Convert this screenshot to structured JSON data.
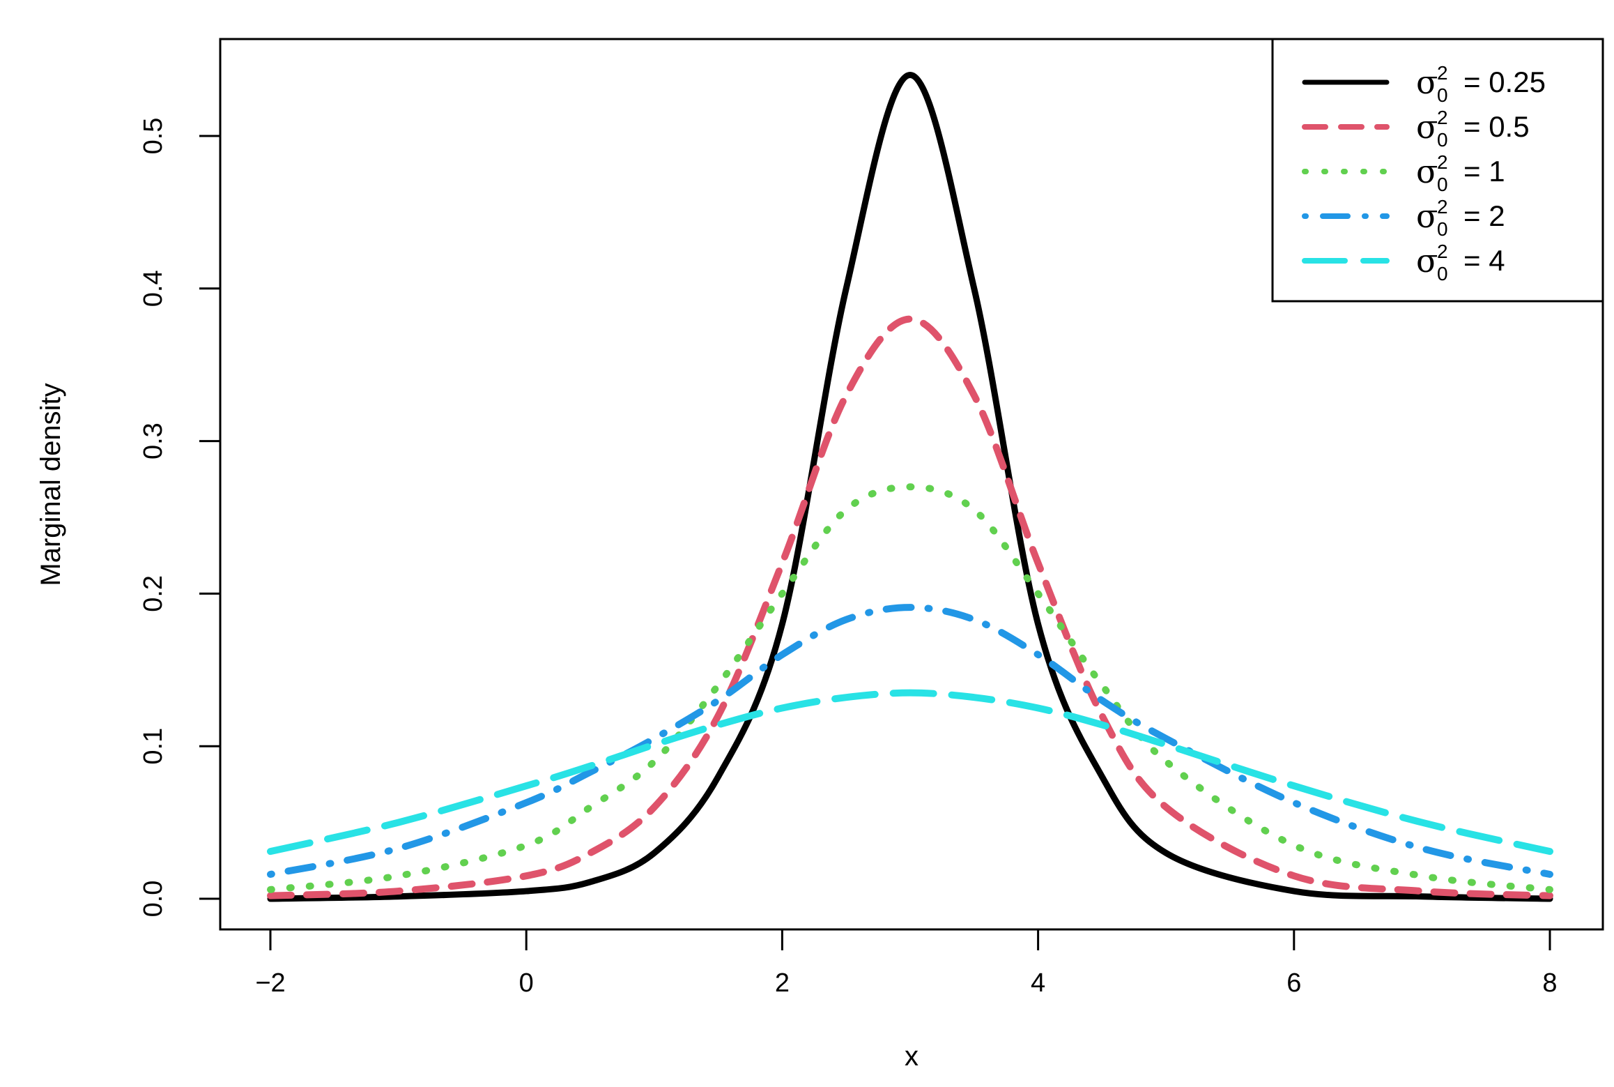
{
  "chart_data": {
    "type": "line",
    "xlabel": "x",
    "ylabel": "Marginal density",
    "xlim": [
      -2,
      8
    ],
    "ylim": [
      0,
      0.55
    ],
    "x_ticks": [
      "−2",
      "0",
      "2",
      "4",
      "6",
      "8"
    ],
    "x_tick_values": [
      -2,
      0,
      2,
      4,
      6,
      8
    ],
    "y_ticks": [
      "0.0",
      "0.1",
      "0.2",
      "0.3",
      "0.4",
      "0.5"
    ],
    "y_tick_values": [
      0,
      0.1,
      0.2,
      0.3,
      0.4,
      0.5
    ],
    "legend_position": "top-right",
    "grid": false,
    "series": [
      {
        "name": "0.25",
        "color": "#000000",
        "style": "solid",
        "x": [
          -2,
          -1,
          0,
          0.5,
          1,
          1.5,
          2,
          2.5,
          3,
          3.5,
          4,
          4.5,
          5,
          6,
          7,
          8
        ],
        "y": [
          0.0,
          0.0015,
          0.005,
          0.011,
          0.03,
          0.08,
          0.18,
          0.4,
          0.54,
          0.4,
          0.18,
          0.08,
          0.03,
          0.005,
          0.0015,
          0.0
        ]
      },
      {
        "name": "0.5",
        "color": "#DF536B",
        "style": "dashed",
        "x": [
          -2,
          -1,
          0,
          0.5,
          1,
          1.5,
          2,
          2.5,
          3,
          3.5,
          4,
          4.5,
          5,
          6,
          7,
          8
        ],
        "y": [
          0.002,
          0.005,
          0.015,
          0.03,
          0.06,
          0.12,
          0.22,
          0.33,
          0.38,
          0.33,
          0.22,
          0.12,
          0.06,
          0.015,
          0.005,
          0.002
        ]
      },
      {
        "name": "1",
        "color": "#61D04F",
        "style": "dotted",
        "x": [
          -2,
          -1,
          0,
          0.5,
          1,
          1.5,
          2,
          2.5,
          3,
          3.5,
          4,
          4.5,
          5,
          6,
          7,
          8
        ],
        "y": [
          0.006,
          0.015,
          0.035,
          0.06,
          0.09,
          0.14,
          0.2,
          0.255,
          0.27,
          0.255,
          0.2,
          0.14,
          0.09,
          0.035,
          0.015,
          0.006
        ]
      },
      {
        "name": "2",
        "color": "#2297E6",
        "style": "dotdash",
        "x": [
          -2,
          -1,
          0,
          0.5,
          1,
          1.5,
          2,
          2.5,
          3,
          3.5,
          4,
          4.5,
          5,
          6,
          7,
          8
        ],
        "y": [
          0.016,
          0.033,
          0.063,
          0.083,
          0.105,
          0.13,
          0.16,
          0.183,
          0.191,
          0.183,
          0.16,
          0.13,
          0.105,
          0.063,
          0.033,
          0.016
        ]
      },
      {
        "name": "4",
        "color": "#28E2E5",
        "style": "longdash",
        "x": [
          -2,
          -1,
          0,
          0.5,
          1,
          1.5,
          2,
          2.5,
          3,
          3.5,
          4,
          4.5,
          5,
          6,
          7,
          8
        ],
        "y": [
          0.031,
          0.05,
          0.074,
          0.087,
          0.101,
          0.114,
          0.125,
          0.132,
          0.135,
          0.132,
          0.125,
          0.114,
          0.101,
          0.074,
          0.05,
          0.031
        ]
      }
    ]
  },
  "legend": {
    "symbol": "σ",
    "subscript": "0",
    "superscript": "2",
    "equals": "="
  }
}
